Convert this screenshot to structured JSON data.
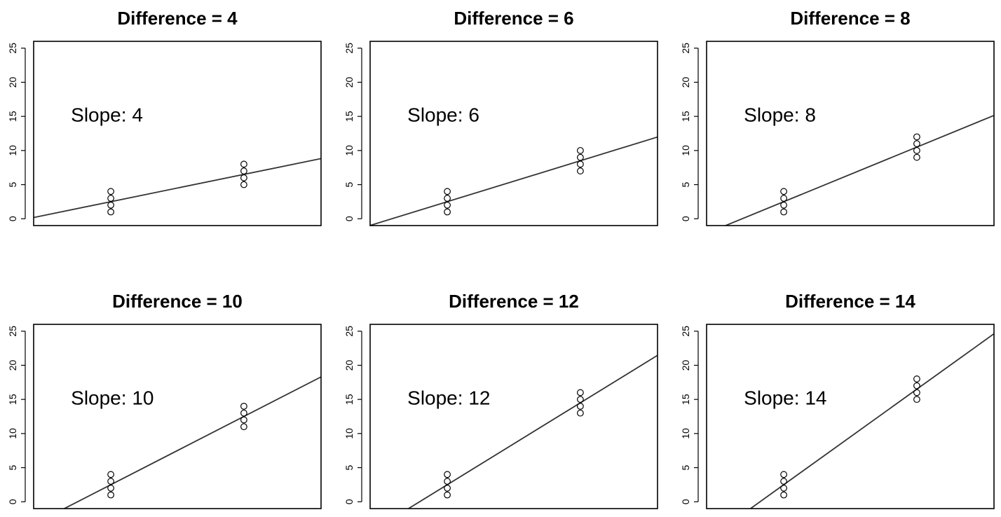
{
  "chart_data": [
    {
      "type": "scatter",
      "title": "Difference = 4",
      "annotation": "Slope: 4",
      "xlim": [
        0.42,
        2.58
      ],
      "ylim": [
        -1,
        26
      ],
      "yticks": [
        "0",
        "5",
        "10",
        "15",
        "20",
        "25"
      ],
      "points": [
        [
          1,
          1
        ],
        [
          1,
          2
        ],
        [
          1,
          3
        ],
        [
          1,
          4
        ],
        [
          2,
          5
        ],
        [
          2,
          6
        ],
        [
          2,
          7
        ],
        [
          2,
          8
        ]
      ],
      "line": {
        "intercept": -1.5,
        "slope": 4
      }
    },
    {
      "type": "scatter",
      "title": "Difference = 6",
      "annotation": "Slope: 6",
      "xlim": [
        0.42,
        2.58
      ],
      "ylim": [
        -1,
        26
      ],
      "yticks": [
        "0",
        "5",
        "10",
        "15",
        "20",
        "25"
      ],
      "points": [
        [
          1,
          1
        ],
        [
          1,
          2
        ],
        [
          1,
          3
        ],
        [
          1,
          4
        ],
        [
          2,
          7
        ],
        [
          2,
          8
        ],
        [
          2,
          9
        ],
        [
          2,
          10
        ]
      ],
      "line": {
        "intercept": -3.5,
        "slope": 6
      }
    },
    {
      "type": "scatter",
      "title": "Difference = 8",
      "annotation": "Slope: 8",
      "xlim": [
        0.42,
        2.58
      ],
      "ylim": [
        -1,
        26
      ],
      "yticks": [
        "0",
        "5",
        "10",
        "15",
        "20",
        "25"
      ],
      "points": [
        [
          1,
          1
        ],
        [
          1,
          2
        ],
        [
          1,
          3
        ],
        [
          1,
          4
        ],
        [
          2,
          9
        ],
        [
          2,
          10
        ],
        [
          2,
          11
        ],
        [
          2,
          12
        ]
      ],
      "line": {
        "intercept": -5.5,
        "slope": 8
      }
    },
    {
      "type": "scatter",
      "title": "Difference = 10",
      "annotation": "Slope: 10",
      "xlim": [
        0.42,
        2.58
      ],
      "ylim": [
        -1,
        26
      ],
      "yticks": [
        "0",
        "5",
        "10",
        "15",
        "20",
        "25"
      ],
      "points": [
        [
          1,
          1
        ],
        [
          1,
          2
        ],
        [
          1,
          3
        ],
        [
          1,
          4
        ],
        [
          2,
          11
        ],
        [
          2,
          12
        ],
        [
          2,
          13
        ],
        [
          2,
          14
        ]
      ],
      "line": {
        "intercept": -7.5,
        "slope": 10
      }
    },
    {
      "type": "scatter",
      "title": "Difference = 12",
      "annotation": "Slope: 12",
      "xlim": [
        0.42,
        2.58
      ],
      "ylim": [
        -1,
        26
      ],
      "yticks": [
        "0",
        "5",
        "10",
        "15",
        "20",
        "25"
      ],
      "points": [
        [
          1,
          1
        ],
        [
          1,
          2
        ],
        [
          1,
          3
        ],
        [
          1,
          4
        ],
        [
          2,
          13
        ],
        [
          2,
          14
        ],
        [
          2,
          15
        ],
        [
          2,
          16
        ]
      ],
      "line": {
        "intercept": -9.5,
        "slope": 12
      }
    },
    {
      "type": "scatter",
      "title": "Difference = 14",
      "annotation": "Slope: 14",
      "xlim": [
        0.42,
        2.58
      ],
      "ylim": [
        -1,
        26
      ],
      "yticks": [
        "0",
        "5",
        "10",
        "15",
        "20",
        "25"
      ],
      "points": [
        [
          1,
          1
        ],
        [
          1,
          2
        ],
        [
          1,
          3
        ],
        [
          1,
          4
        ],
        [
          2,
          15
        ],
        [
          2,
          16
        ],
        [
          2,
          17
        ],
        [
          2,
          18
        ]
      ],
      "line": {
        "intercept": -11.5,
        "slope": 14
      }
    }
  ]
}
